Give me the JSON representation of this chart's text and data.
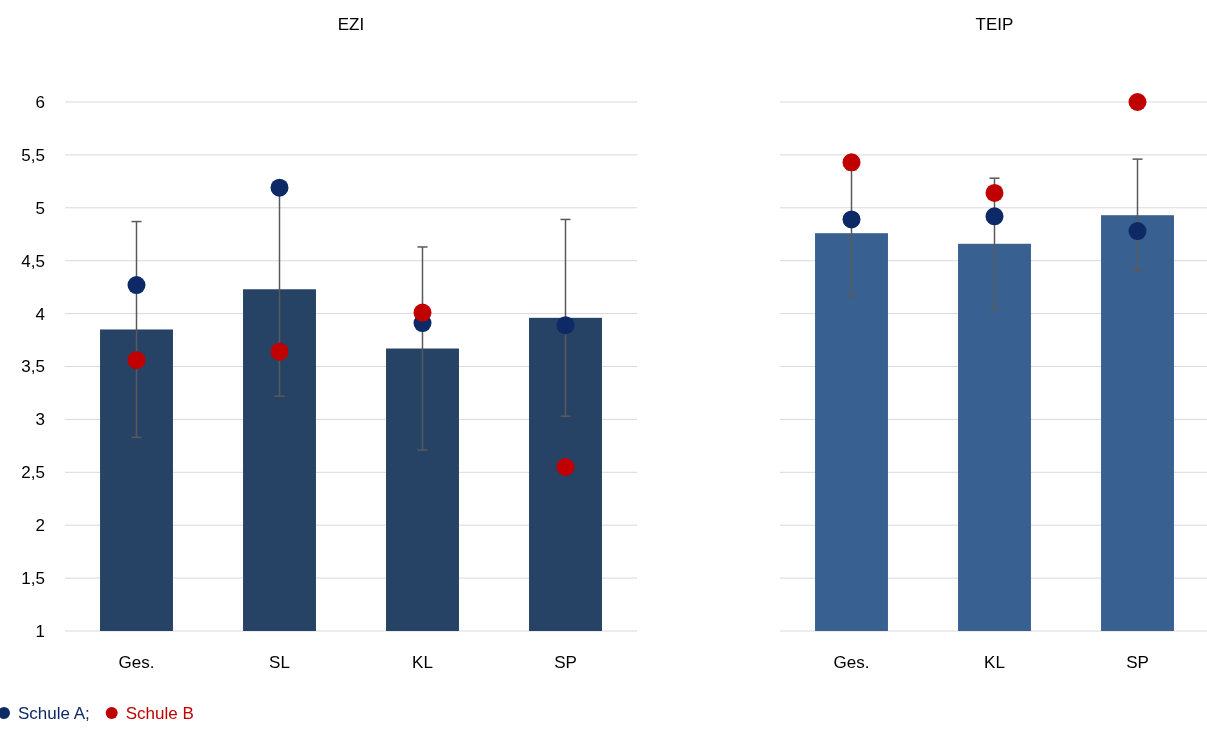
{
  "chart_data": [
    {
      "type": "bar",
      "title": "EZI",
      "categories": [
        "Ges.",
        "SL",
        "KL",
        "SP"
      ],
      "ylim": [
        1,
        6
      ],
      "yticks": [
        1,
        {
          "value": 1.5,
          "label": "1,5"
        },
        2,
        {
          "value": 2.5,
          "label": "2,5"
        },
        3,
        {
          "value": 3.5,
          "label": "3,5"
        },
        4,
        {
          "value": 4.5,
          "label": "4,5"
        },
        5,
        {
          "value": 5.5,
          "label": "5,5"
        },
        6
      ],
      "grid": "y",
      "legend": "bottom",
      "marker": "circle",
      "series": [
        {
          "color": "#264365",
          "values": [
            3.85,
            4.23,
            3.67,
            3.96
          ],
          "errors": [
            1.02,
            1.01,
            0.96,
            0.93
          ]
        },
        {
          "type": "scatter",
          "name": "Schule A;",
          "color": "#0d2a66",
          "values": [
            4.27,
            5.19,
            3.91,
            3.89
          ]
        },
        {
          "type": "scatter",
          "name": "Schule B",
          "color": "#c00000",
          "values": [
            3.56,
            3.64,
            4.01,
            2.55
          ]
        }
      ]
    },
    {
      "type": "bar",
      "title": "TEIP",
      "categories": [
        "Ges.",
        "KL",
        "SP"
      ],
      "ylim": [
        1,
        6
      ],
      "yticks": [
        1,
        1.5,
        2,
        2.5,
        3,
        3.5,
        4,
        4.5,
        5,
        5.5,
        6
      ],
      "grid": "y",
      "tick_labels": "x",
      "marker": "circle",
      "series": [
        {
          "color": "#386192",
          "values": [
            4.76,
            4.66,
            4.93
          ],
          "errors": [
            0.6,
            0.62,
            0.53
          ]
        },
        {
          "type": "scatter",
          "color": "#0d2a66",
          "values": [
            4.89,
            4.92,
            4.78
          ]
        },
        {
          "type": "scatter",
          "color": "#c00000",
          "values": [
            5.43,
            5.14,
            6
          ]
        }
      ]
    }
  ]
}
